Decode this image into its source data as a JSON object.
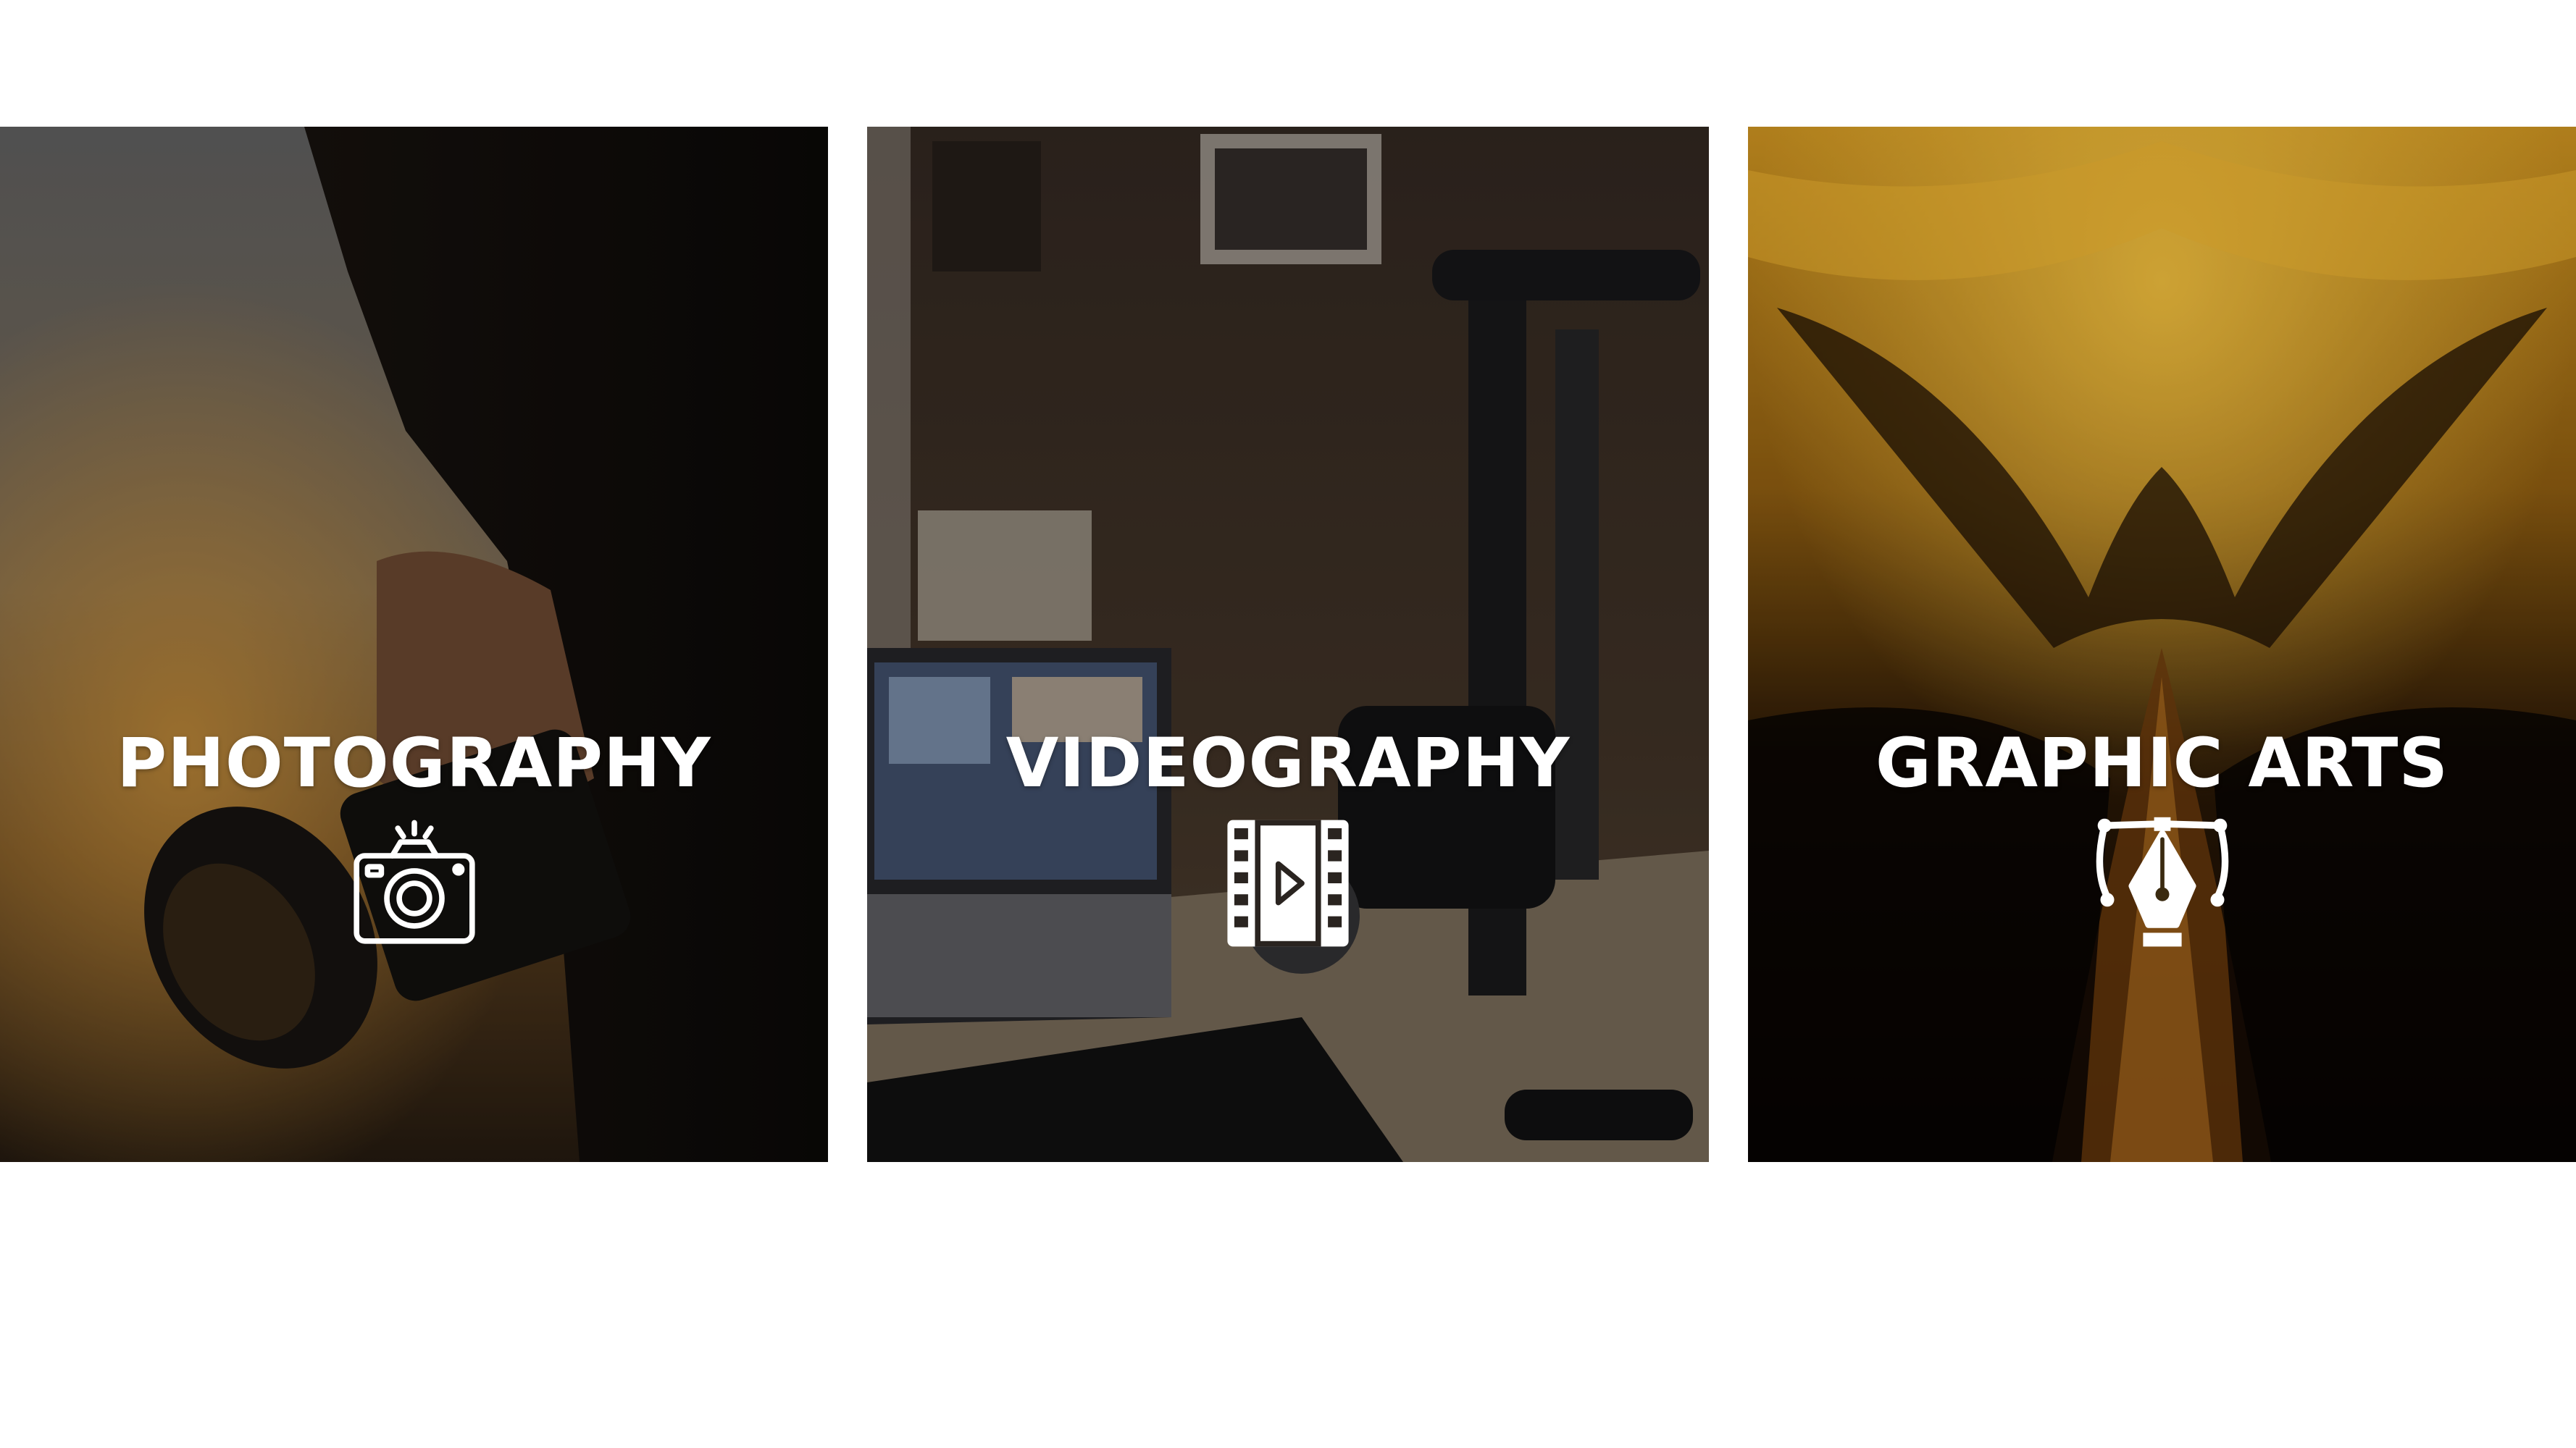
{
  "cards": [
    {
      "label": "PHOTOGRAPHY",
      "icon": "camera-icon"
    },
    {
      "label": "VIDEOGRAPHY",
      "icon": "film-play-icon"
    },
    {
      "label": "GRAPHIC ARTS",
      "icon": "pen-tool-icon"
    }
  ],
  "colors": {
    "background": "#ffffff",
    "text": "#ffffff"
  }
}
